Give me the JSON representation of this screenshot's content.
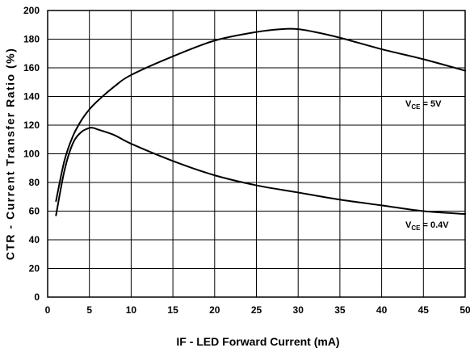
{
  "chart_data": {
    "type": "line",
    "xlabel": "IF - LED Forward Current (mA)",
    "ylabel": "CTR - Current Transfer Ratio (%)",
    "xlim": [
      0,
      50
    ],
    "ylim": [
      0,
      200
    ],
    "x_ticks": [
      0,
      5,
      10,
      15,
      20,
      25,
      30,
      35,
      40,
      45,
      50
    ],
    "y_ticks": [
      0,
      20,
      40,
      60,
      80,
      100,
      120,
      140,
      160,
      180,
      200
    ],
    "grid": true,
    "series": [
      {
        "name": "VCE = 5V",
        "label": {
          "main_pre": "V",
          "sub": "CE",
          "main_post": " = 5V"
        },
        "x": [
          1,
          2,
          3,
          4,
          5,
          6,
          8,
          10,
          15,
          20,
          25,
          28,
          30,
          32,
          35,
          40,
          45,
          50
        ],
        "values": [
          67,
          95,
          112,
          123,
          131,
          137,
          147,
          155,
          168,
          179,
          185,
          187,
          187,
          185,
          181,
          173,
          166,
          158
        ]
      },
      {
        "name": "VCE = 0.4V",
        "label": {
          "main_pre": "V",
          "sub": "CE",
          "main_post": " = 0.4V"
        },
        "x": [
          1,
          2,
          3,
          4,
          5,
          5.5,
          6,
          8,
          10,
          15,
          20,
          25,
          30,
          35,
          40,
          45,
          50
        ],
        "values": [
          57,
          88,
          107,
          115,
          118,
          118,
          117,
          113,
          107,
          95,
          85,
          78,
          73,
          68,
          64,
          60,
          58
        ]
      }
    ]
  }
}
